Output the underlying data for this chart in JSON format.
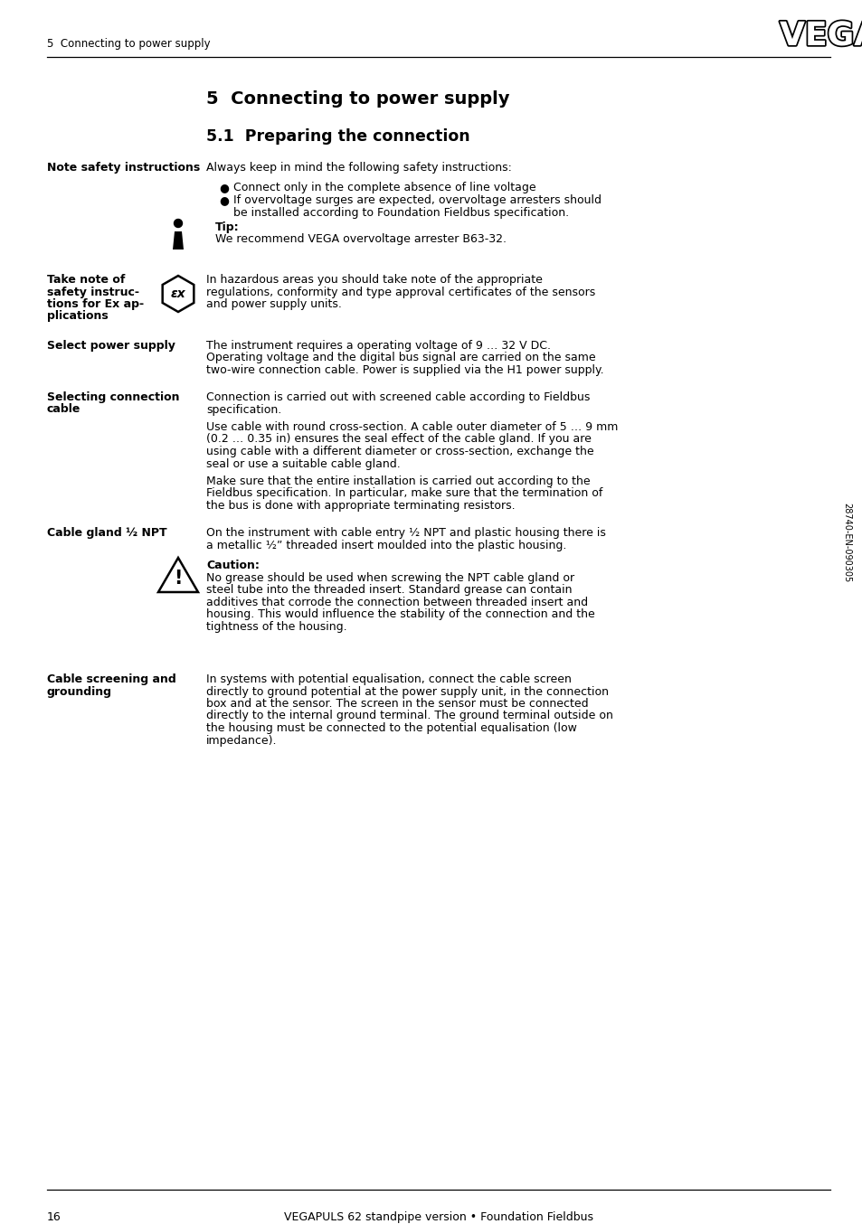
{
  "bg_color": "#ffffff",
  "header_text": "5  Connecting to power supply",
  "footer_page": "16",
  "footer_center": "VEGAPULS 62 standpipe version • Foundation Fieldbus",
  "chapter_title": "5  Connecting to power supply",
  "section_title": "5.1  Preparing the connection",
  "sidebar_label_1": "Note safety instructions",
  "body_1": "Always keep in mind the following safety instructions:",
  "bullet_1": "Connect only in the complete absence of line voltage",
  "bullet_2a": "If overvoltage surges are expected, overvoltage arresters should",
  "bullet_2b": "be installed according to Foundation Fieldbus specification.",
  "tip_label": "Tip:",
  "tip_body": "We recommend VEGA overvoltage arrester B63-32.",
  "sidebar_label_2_line1": "Take note of",
  "sidebar_label_2_line2": "safety instruc-",
  "sidebar_label_2_line3": "tions for Ex ap-",
  "sidebar_label_2_line4": "plications",
  "body_2a": "In hazardous areas you should take note of the appropriate",
  "body_2b": "regulations, conformity and type approval certificates of the sensors",
  "body_2c": "and power supply units.",
  "sidebar_label_3": "Select power supply",
  "body_3a": "The instrument requires a operating voltage of 9 … 32 V DC.",
  "body_3b": "Operating voltage and the digital bus signal are carried on the same",
  "body_3c": "two-wire connection cable. Power is supplied via the H1 power supply.",
  "sidebar_label_4_line1": "Selecting connection",
  "sidebar_label_4_line2": "cable",
  "body_4a": "Connection is carried out with screened cable according to Fieldbus",
  "body_4b": "specification.",
  "body_4c": "Use cable with round cross-section. A cable outer diameter of 5 … 9 mm",
  "body_4d": "(0.2 … 0.35 in) ensures the seal effect of the cable gland. If you are",
  "body_4e": "using cable with a different diameter or cross-section, exchange the",
  "body_4f": "seal or use a suitable cable gland.",
  "body_4g": "Make sure that the entire installation is carried out according to the",
  "body_4h": "Fieldbus specification. In particular, make sure that the termination of",
  "body_4i": "the bus is done with appropriate terminating resistors.",
  "sidebar_label_5": "Cable gland ½ NPT",
  "body_5a": "On the instrument with cable entry ½ NPT and plastic housing there is",
  "body_5b": "a metallic ½” threaded insert moulded into the plastic housing.",
  "caution_label": "Caution:",
  "caution_body_a": "No grease should be used when screwing the NPT cable gland or",
  "caution_body_b": "steel tube into the threaded insert. Standard grease can contain",
  "caution_body_c": "additives that corrode the connection between threaded insert and",
  "caution_body_d": "housing. This would influence the stability of the connection and the",
  "caution_body_e": "tightness of the housing.",
  "sidebar_label_6_line1": "Cable screening and",
  "sidebar_label_6_line2": "grounding",
  "body_6a": "In systems with potential equalisation, connect the cable screen",
  "body_6b": "directly to ground potential at the power supply unit, in the connection",
  "body_6c": "box and at the sensor. The screen in the sensor must be connected",
  "body_6d": "directly to the internal ground terminal. The ground terminal outside on",
  "body_6e": "the housing must be connected to the potential equalisation (low",
  "body_6f": "impedance).",
  "rotated_text": "28740-EN-090305"
}
